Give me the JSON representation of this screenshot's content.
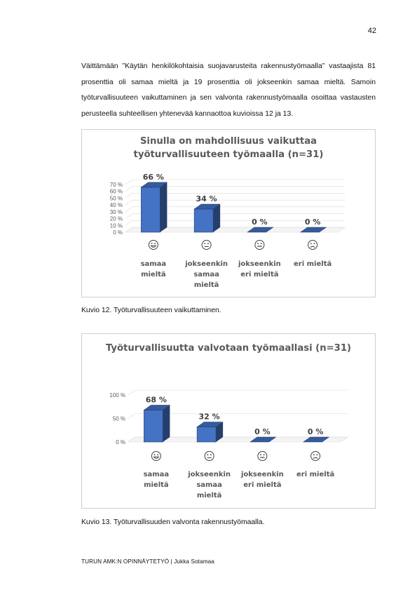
{
  "page": {
    "number": "42",
    "paragraph": "Väittämään ”Käytän henkilökohtaisia suojavarusteita rakennustyömaalla” vastaajista 81 prosenttia oli samaa mieltä ja 19 prosenttia oli jokseenkin samaa mieltä.  Samoin työturvallisuuteen vaikuttaminen ja sen valvonta rakennustyömaalla osoittaa vastausten perusteella suhteellisen yhtenevää kannaottoa kuvioissa 12 ja 13.",
    "caption1": "Kuvio 12. Työturvallisuuteen vaikuttaminen.",
    "caption2": "Kuvio 13. Työturvallisuuden valvonta rakennustyömaalla.",
    "footer": "TURUN AMK:N OPINNÄYTETYÖ | Jukka Sotamaa"
  },
  "chart_data": [
    {
      "type": "bar",
      "title_lines": [
        "Sinulla on mahdollisuus vaikuttaa",
        "työturvallisuuteen työmaalla (n=31)"
      ],
      "categories": [
        [
          "samaa",
          "mieltä"
        ],
        [
          "jokseenkin",
          "samaa",
          "mieltä"
        ],
        [
          "jokseenkin",
          "eri mieltä"
        ],
        [
          "eri mieltä"
        ]
      ],
      "icons": [
        "grinning-face-icon",
        "neutral-face-icon",
        "tense-face-icon",
        "frowning-face-icon"
      ],
      "values": [
        66,
        34,
        0,
        0
      ],
      "value_labels": [
        "66 %",
        "34 %",
        "0 %",
        "0 %"
      ],
      "yticks": [
        "0 %",
        "10 %",
        "20 %",
        "30 %",
        "40 %",
        "50 %",
        "60 %",
        "70 %"
      ],
      "ylim": [
        0,
        70
      ],
      "grid": true,
      "bar_color": "#4472C4"
    },
    {
      "type": "bar",
      "title_lines": [
        "Työturvallisuutta valvotaan työmaallasi (n=31)"
      ],
      "categories": [
        [
          "samaa",
          "mieltä"
        ],
        [
          "jokseenkin",
          "samaa",
          "mieltä"
        ],
        [
          "jokseenkin",
          "eri mieltä"
        ],
        [
          "eri mieltä"
        ]
      ],
      "icons": [
        "grinning-face-icon",
        "neutral-face-icon",
        "tense-face-icon",
        "frowning-face-icon"
      ],
      "values": [
        68,
        32,
        0,
        0
      ],
      "value_labels": [
        "68 %",
        "32 %",
        "0 %",
        "0 %"
      ],
      "yticks": [
        "0 %",
        "50 %",
        "100 %"
      ],
      "ylim": [
        0,
        100
      ],
      "grid": true,
      "bar_color": "#4472C4"
    }
  ]
}
